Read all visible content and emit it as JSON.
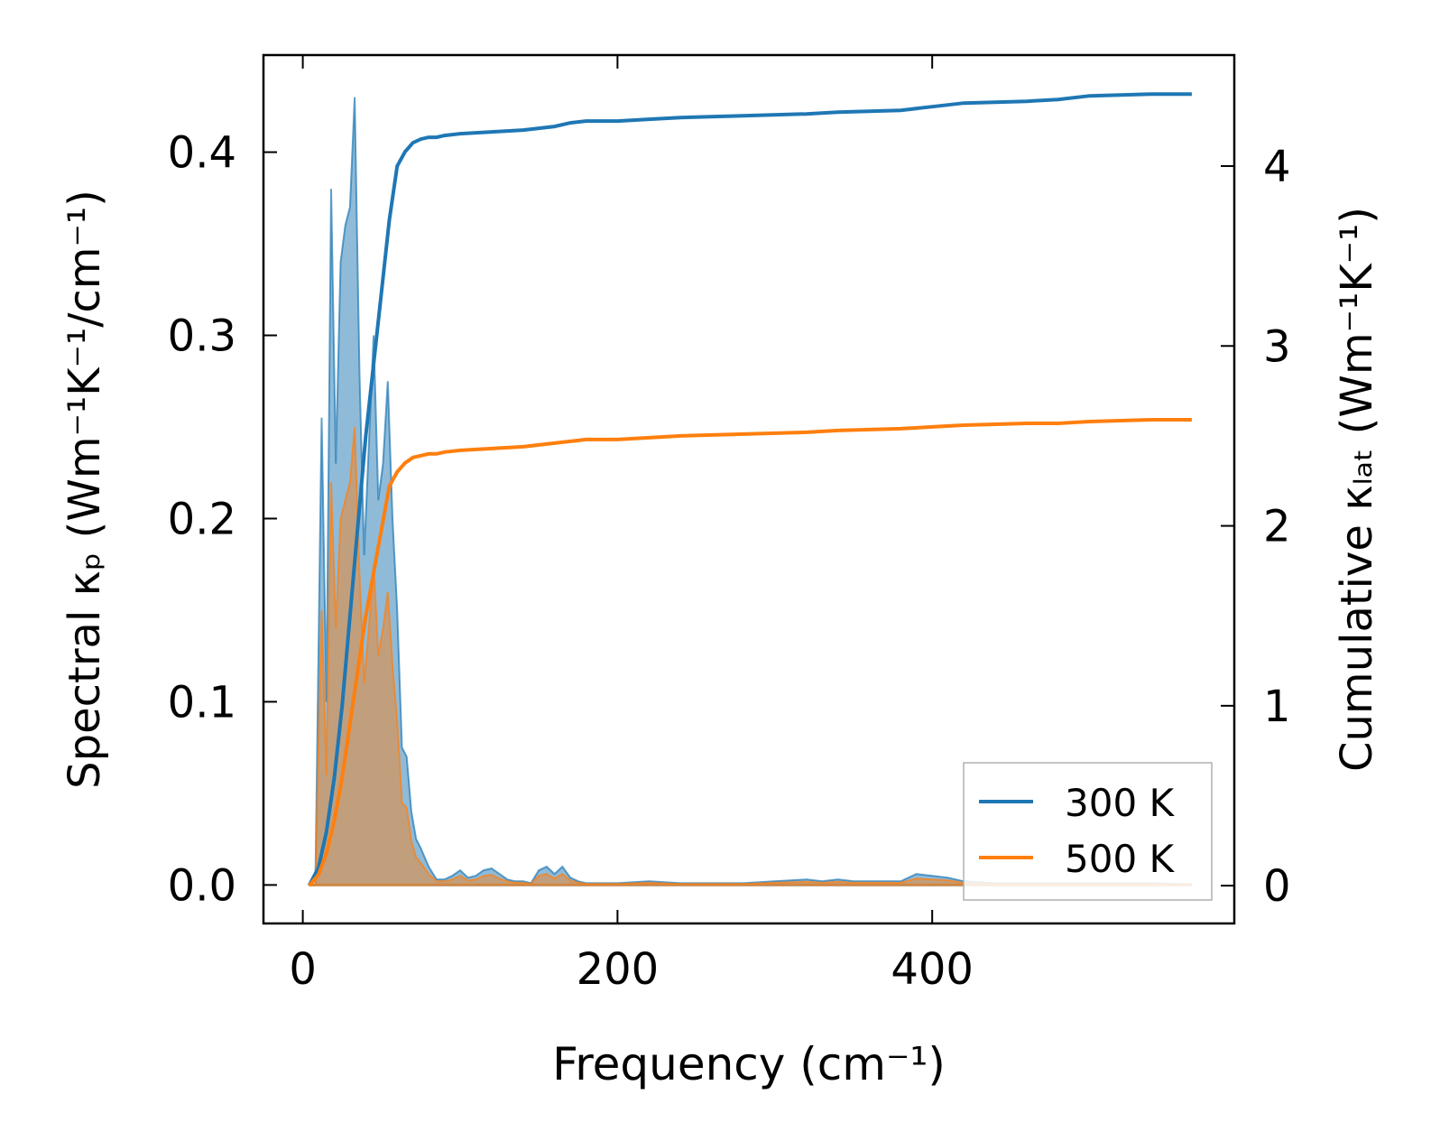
{
  "chart_data": {
    "type": "area",
    "title": "",
    "xlabel": "Frequency (cm⁻¹)",
    "ylabel_left": "Spectral κₚ (Wm⁻¹K⁻¹/cm⁻¹)",
    "ylabel_right": "Cumulative κₗₐₜ (Wm⁻¹K⁻¹)",
    "xlim": [
      -25,
      592
    ],
    "ylim_left": [
      -0.021,
      0.453
    ],
    "ylim_right": [
      -0.21,
      4.617
    ],
    "x_ticks": [
      0,
      200,
      400
    ],
    "x_tick_labels": [
      "0",
      "200",
      "400"
    ],
    "y_left_ticks": [
      0.0,
      0.1,
      0.2,
      0.3,
      0.4
    ],
    "y_left_tick_labels": [
      "0.0",
      "0.1",
      "0.2",
      "0.3",
      "0.4"
    ],
    "y_right_ticks": [
      0,
      1,
      2,
      3,
      4
    ],
    "y_right_tick_labels": [
      "0",
      "1",
      "2",
      "3",
      "4"
    ],
    "grid": false,
    "legend": {
      "position": "bottom-right",
      "entries": [
        "300 K",
        "500 K"
      ]
    },
    "series": [
      {
        "name": "300 K",
        "color": "#1f77b4",
        "spectral_x": [
          4,
          8,
          12,
          15,
          18,
          21,
          24,
          27,
          30,
          33,
          36,
          39,
          42,
          45,
          48,
          51,
          54,
          57,
          60,
          63,
          66,
          69,
          72,
          75,
          80,
          85,
          90,
          95,
          100,
          105,
          110,
          115,
          120,
          125,
          130,
          135,
          140,
          145,
          150,
          155,
          160,
          165,
          170,
          175,
          180,
          200,
          220,
          240,
          260,
          280,
          300,
          320,
          330,
          340,
          350,
          380,
          390,
          400,
          410,
          420,
          440,
          460,
          480,
          490,
          500,
          520,
          540,
          560,
          565
        ],
        "spectral_y": [
          0,
          0,
          0.255,
          0.1,
          0.38,
          0.23,
          0.34,
          0.36,
          0.37,
          0.43,
          0.28,
          0.18,
          0.24,
          0.3,
          0.21,
          0.23,
          0.275,
          0.2,
          0.15,
          0.075,
          0.07,
          0.04,
          0.025,
          0.02,
          0.01,
          0.003,
          0.003,
          0.005,
          0.008,
          0.004,
          0.005,
          0.008,
          0.009,
          0.006,
          0.003,
          0.002,
          0.002,
          0.001,
          0.008,
          0.01,
          0.006,
          0.01,
          0.004,
          0.002,
          0.001,
          0.001,
          0.002,
          0.001,
          0.001,
          0.001,
          0.002,
          0.003,
          0.002,
          0.003,
          0.002,
          0.002,
          0.006,
          0.005,
          0.004,
          0.002,
          0.001,
          0.001,
          0.001,
          0.001,
          0.001,
          0.001,
          0.001,
          0.0005,
          0.0005
        ],
        "cumulative_x": [
          4,
          10,
          15,
          20,
          25,
          30,
          35,
          40,
          45,
          50,
          55,
          60,
          65,
          70,
          75,
          80,
          85,
          90,
          100,
          120,
          140,
          150,
          160,
          170,
          180,
          200,
          220,
          240,
          280,
          320,
          340,
          380,
          400,
          420,
          460,
          480,
          500,
          540,
          565
        ],
        "cumulative_y": [
          0,
          0.1,
          0.3,
          0.6,
          1.0,
          1.5,
          2.0,
          2.5,
          2.9,
          3.3,
          3.7,
          4.0,
          4.08,
          4.13,
          4.15,
          4.16,
          4.16,
          4.17,
          4.18,
          4.19,
          4.2,
          4.21,
          4.22,
          4.24,
          4.25,
          4.25,
          4.26,
          4.27,
          4.28,
          4.29,
          4.3,
          4.31,
          4.33,
          4.35,
          4.36,
          4.37,
          4.39,
          4.4,
          4.4
        ]
      },
      {
        "name": "500 K",
        "color": "#ff7f0e",
        "spectral_x": [
          4,
          8,
          12,
          15,
          18,
          21,
          24,
          27,
          30,
          33,
          36,
          39,
          42,
          45,
          48,
          51,
          54,
          57,
          60,
          63,
          66,
          69,
          72,
          75,
          80,
          85,
          90,
          95,
          100,
          105,
          110,
          115,
          120,
          125,
          130,
          135,
          140,
          145,
          150,
          155,
          160,
          165,
          170,
          175,
          180,
          200,
          220,
          240,
          260,
          280,
          300,
          320,
          330,
          340,
          350,
          380,
          390,
          400,
          410,
          420,
          440,
          460,
          480,
          490,
          500,
          520,
          540,
          560,
          565
        ],
        "spectral_y": [
          0,
          0,
          0.15,
          0.06,
          0.22,
          0.14,
          0.2,
          0.21,
          0.22,
          0.25,
          0.17,
          0.11,
          0.14,
          0.175,
          0.125,
          0.14,
          0.16,
          0.12,
          0.09,
          0.045,
          0.042,
          0.024,
          0.015,
          0.012,
          0.006,
          0.002,
          0.002,
          0.003,
          0.005,
          0.0025,
          0.003,
          0.005,
          0.0055,
          0.0035,
          0.002,
          0.0012,
          0.0012,
          0.0006,
          0.005,
          0.006,
          0.0035,
          0.006,
          0.0025,
          0.0012,
          0.0006,
          0.0006,
          0.0012,
          0.0006,
          0.0006,
          0.0006,
          0.0012,
          0.0018,
          0.0012,
          0.0018,
          0.0012,
          0.0012,
          0.0035,
          0.003,
          0.0025,
          0.0012,
          0.0006,
          0.0006,
          0.0006,
          0.0006,
          0.0006,
          0.0006,
          0.0006,
          0.0003,
          0.0003
        ],
        "cumulative_x": [
          4,
          10,
          15,
          20,
          25,
          30,
          35,
          40,
          45,
          50,
          55,
          60,
          65,
          70,
          75,
          80,
          85,
          90,
          100,
          120,
          140,
          150,
          160,
          170,
          180,
          200,
          220,
          240,
          280,
          320,
          340,
          380,
          400,
          420,
          460,
          480,
          500,
          540,
          565
        ],
        "cumulative_y": [
          0,
          0.06,
          0.18,
          0.36,
          0.6,
          0.9,
          1.2,
          1.5,
          1.74,
          1.98,
          2.22,
          2.3,
          2.35,
          2.38,
          2.39,
          2.4,
          2.4,
          2.41,
          2.42,
          2.43,
          2.44,
          2.45,
          2.46,
          2.47,
          2.48,
          2.48,
          2.49,
          2.5,
          2.51,
          2.52,
          2.53,
          2.54,
          2.55,
          2.56,
          2.57,
          2.57,
          2.58,
          2.59,
          2.59
        ]
      }
    ]
  }
}
